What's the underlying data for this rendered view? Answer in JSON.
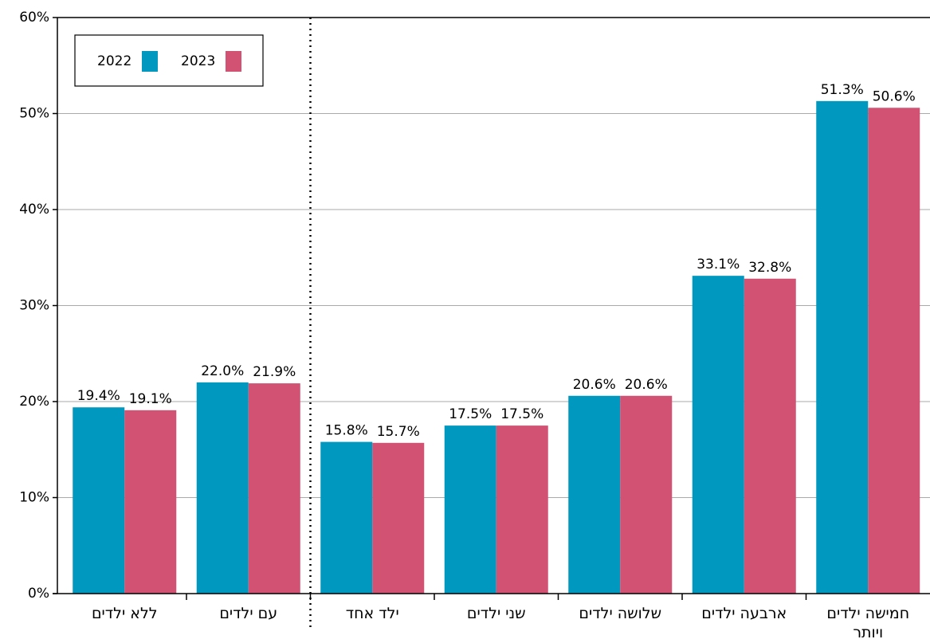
{
  "chart_data": {
    "type": "bar",
    "categories": [
      "ללא ילדים",
      "עם ילדים",
      "ילד אחד",
      "שני ילדים",
      "שלושה ילדים",
      "ארבעה ילדים",
      "חמישה ילדים ויותר"
    ],
    "series": [
      {
        "name": "2022",
        "color": "#0098bf",
        "values": [
          19.4,
          22.0,
          15.8,
          17.5,
          20.6,
          33.1,
          51.3
        ],
        "value_labels": [
          "19.4%",
          "22.0%",
          "15.8%",
          "17.5%",
          "20.6%",
          "33.1%",
          "51.3%"
        ]
      },
      {
        "name": "2023",
        "color": "#d15272",
        "values": [
          19.1,
          21.9,
          15.7,
          17.5,
          20.6,
          32.8,
          50.6
        ],
        "value_labels": [
          "19.1%",
          "21.9%",
          "15.7%",
          "17.5%",
          "20.6%",
          "32.8%",
          "50.6%"
        ]
      }
    ],
    "ylim": [
      0,
      60
    ],
    "yticks": [
      {
        "value": 0,
        "label": "0%"
      },
      {
        "value": 10,
        "label": "10%"
      },
      {
        "value": 20,
        "label": "20%"
      },
      {
        "value": 30,
        "label": "30%"
      },
      {
        "value": 40,
        "label": "40%"
      },
      {
        "value": 50,
        "label": "50%"
      },
      {
        "value": 60,
        "label": "60%"
      }
    ],
    "grid": true
  }
}
